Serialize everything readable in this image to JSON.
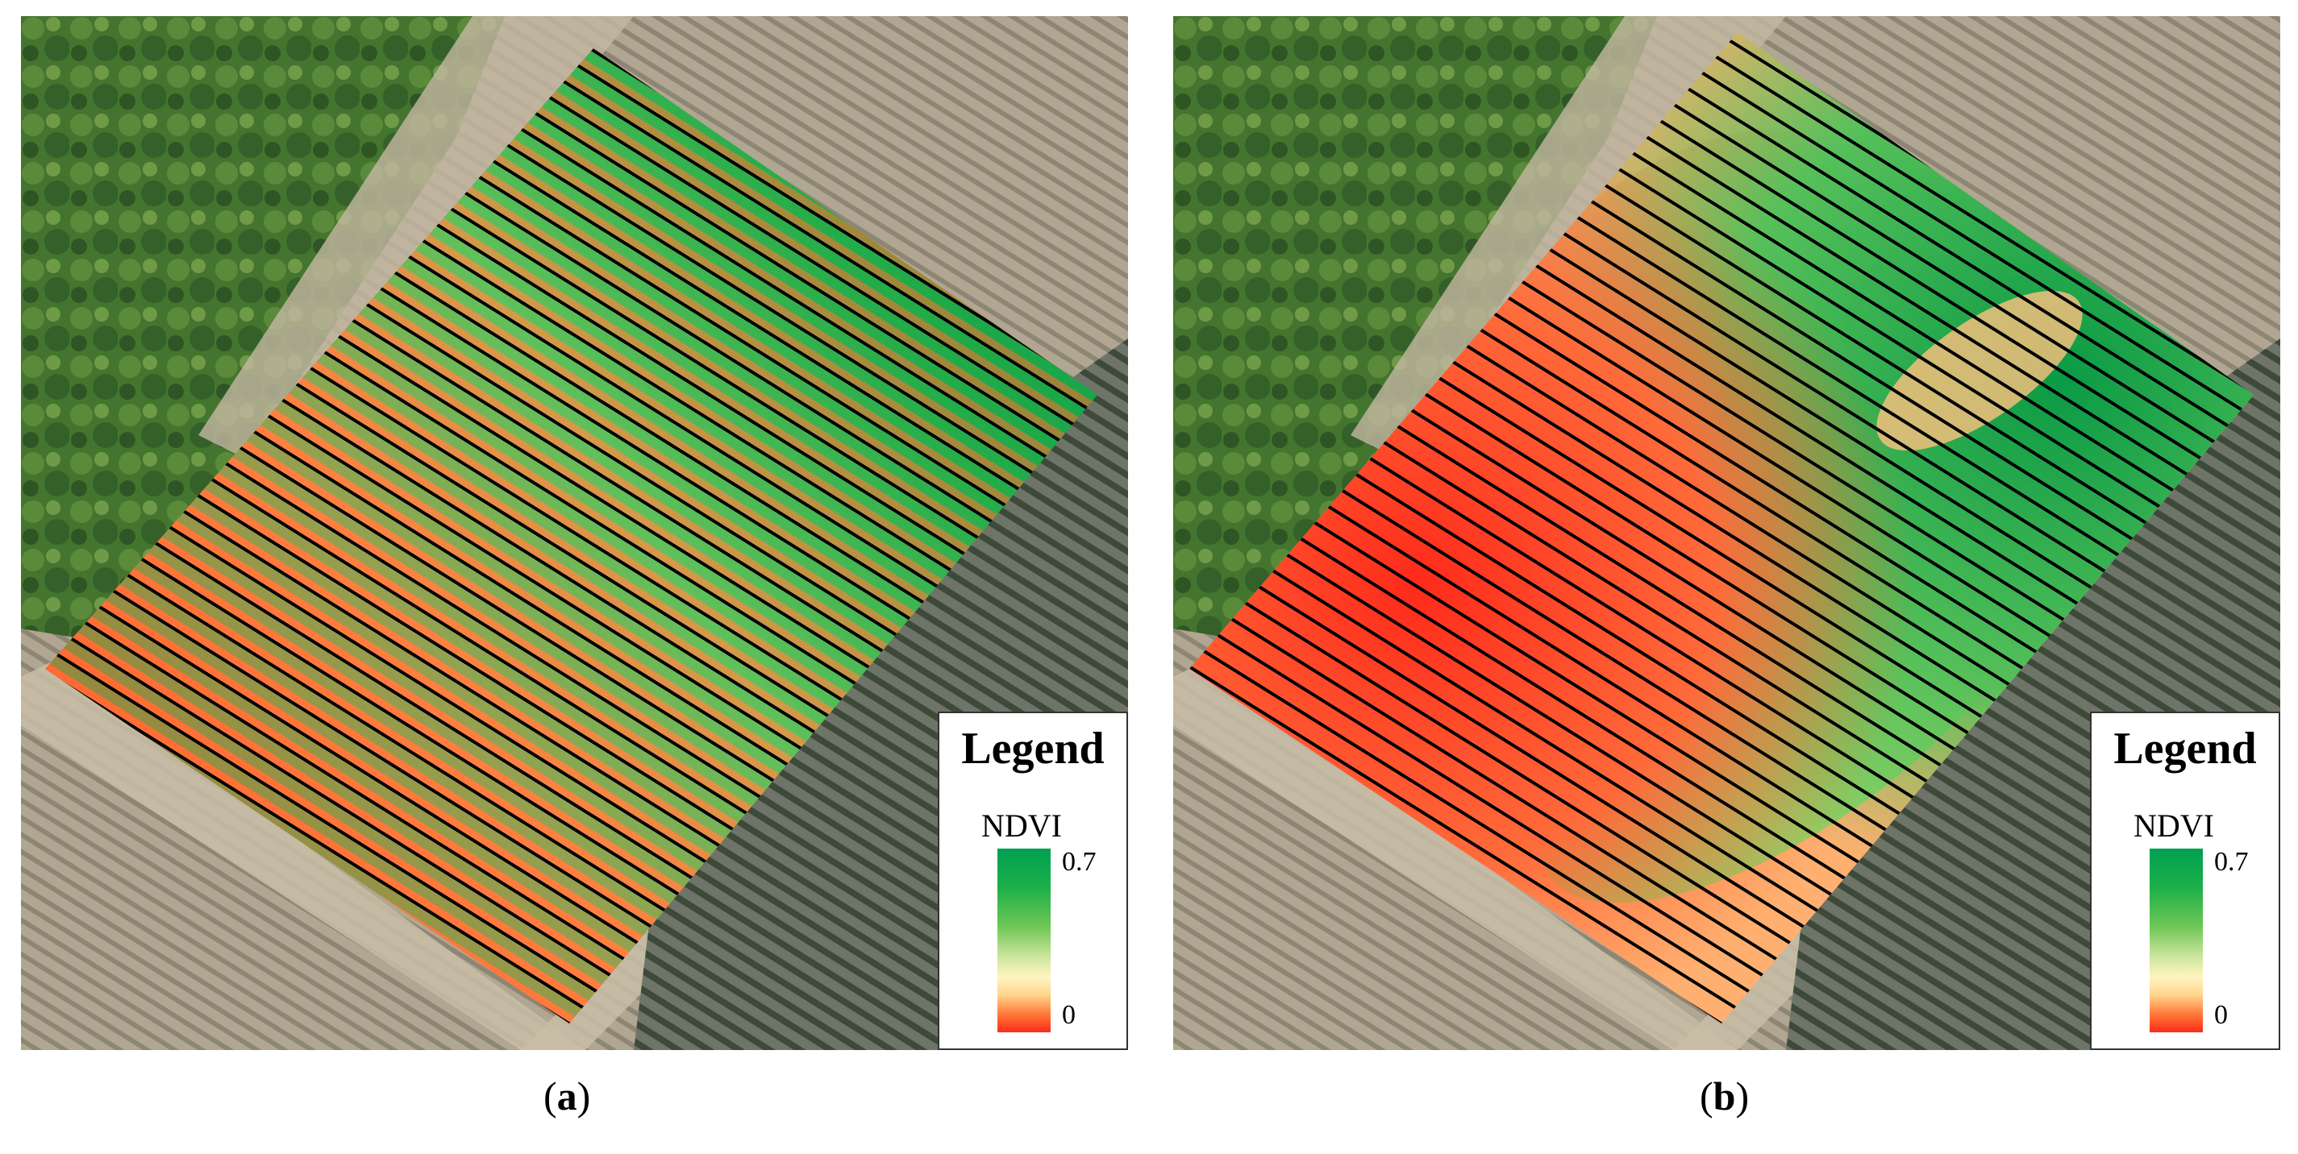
{
  "panels": [
    {
      "id": "a",
      "caption_open": "(",
      "caption_letter": "a",
      "caption_close": ")",
      "legend": {
        "title": "Legend",
        "layer": "NDVI",
        "max_label": "0.7",
        "min_label": "0"
      },
      "surface": "fine-grained per-row NDVI (strong red/green striping)"
    },
    {
      "id": "b",
      "caption_open": "(",
      "caption_letter": "b",
      "caption_close": ")",
      "legend": {
        "title": "Legend",
        "layer": "NDVI",
        "max_label": "0.7",
        "min_label": "0"
      },
      "surface": "smoothed interpolated NDVI zones"
    }
  ],
  "colors": {
    "ndvi_high": "#00a050",
    "ndvi_mid": "#fff5c0",
    "ndvi_low": "#ff2a1a",
    "tree_canopy": "#3f6e2c",
    "bare_field": "#b3a894",
    "row_lines": "#000000"
  }
}
